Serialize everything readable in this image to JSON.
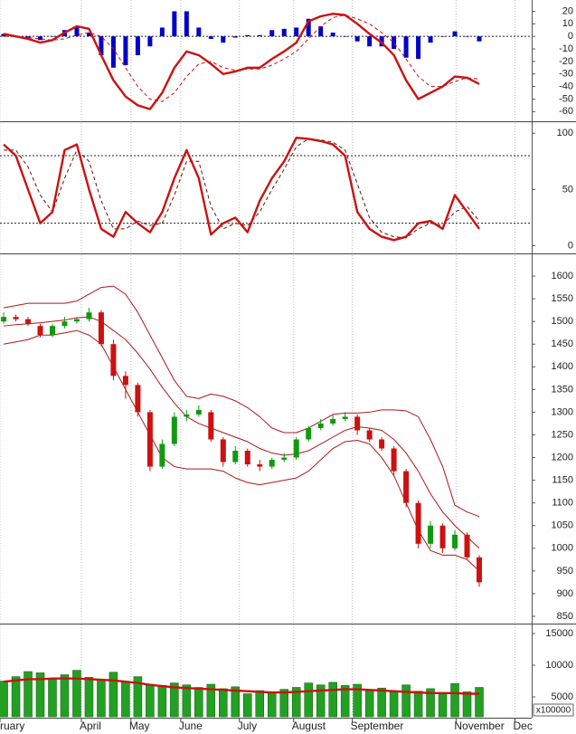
{
  "chart_data": {
    "type": "stock",
    "x": [
      0,
      1,
      2,
      3,
      4,
      5,
      6,
      7,
      8,
      9,
      10,
      11,
      12,
      13,
      14,
      15,
      16,
      17,
      18,
      19,
      20,
      21,
      22,
      23,
      24,
      25,
      26,
      27,
      28,
      29,
      30,
      31,
      32,
      33,
      34,
      35,
      36,
      37,
      38,
      39
    ],
    "xlim": [
      -0.3,
      43.3
    ],
    "xticks": [
      {
        "value": -0.3,
        "label": "ruary"
      },
      {
        "value": 6.37,
        "label": "April"
      },
      {
        "value": 10.44,
        "label": "May"
      },
      {
        "value": 14.52,
        "label": "June"
      },
      {
        "value": 19.33,
        "label": "July"
      },
      {
        "value": 23.78,
        "label": "August"
      },
      {
        "value": 28.59,
        "label": "September"
      },
      {
        "value": 37.1,
        "label": "November"
      },
      {
        "value": 41.93,
        "label": "Dec"
      }
    ],
    "grid": true,
    "panels": [
      {
        "type": "macd",
        "ylim": [
          -67,
          29
        ],
        "yticks": [
          20,
          10,
          0,
          -10,
          -20,
          -30,
          -40,
          -50,
          -60
        ],
        "ref_lines": [
          0
        ],
        "series": [
          {
            "kind": "bar",
            "color": "#0000c8",
            "values": [
              2,
              0,
              -1,
              -3,
              0,
              5,
              7,
              3,
              -15,
              -25,
              -23,
              -15,
              -8,
              7,
              20,
              20,
              7,
              -2,
              -5,
              -1,
              1,
              1,
              5,
              6,
              7,
              14,
              8,
              3,
              0,
              -4,
              -8,
              -8,
              -10,
              -17,
              -18,
              -5,
              0,
              4,
              0,
              -4
            ]
          },
          {
            "kind": "line",
            "color": "#cc1111",
            "dashed": true,
            "values": [
              0,
              0,
              -1,
              -2,
              -3,
              -2,
              1,
              3,
              0,
              -10,
              -25,
              -40,
              -50,
              -52,
              -45,
              -32,
              -22,
              -20,
              -25,
              -27,
              -26,
              -26,
              -23,
              -18,
              -12,
              -2,
              8,
              15,
              17,
              14,
              10,
              3,
              -5,
              -18,
              -32,
              -40,
              -40,
              -36,
              -33,
              -34
            ]
          },
          {
            "kind": "line",
            "color": "#cc1111",
            "dashed": false,
            "values": [
              2,
              0,
              -2,
              -5,
              -3,
              3,
              8,
              6,
              -15,
              -35,
              -48,
              -55,
              -58,
              -45,
              -25,
              -12,
              -15,
              -22,
              -30,
              -28,
              -25,
              -25,
              -18,
              -12,
              -5,
              12,
              16,
              18,
              17,
              10,
              2,
              -5,
              -15,
              -35,
              -50,
              -45,
              -40,
              -32,
              -33,
              -38
            ]
          }
        ]
      },
      {
        "type": "stochastic",
        "ylim": [
          -6,
          109
        ],
        "yticks": [
          100,
          50,
          0
        ],
        "ref_lines": [
          80,
          20
        ],
        "series": [
          {
            "kind": "line",
            "color": "#661111",
            "dashed": true,
            "values": [
              85,
              85,
              70,
              45,
              30,
              60,
              85,
              75,
              40,
              15,
              15,
              22,
              18,
              20,
              45,
              75,
              75,
              35,
              15,
              20,
              18,
              30,
              50,
              68,
              88,
              95,
              94,
              92,
              85,
              55,
              25,
              12,
              8,
              7,
              15,
              20,
              18,
              30,
              35,
              22
            ]
          },
          {
            "kind": "line",
            "color": "#cc1111",
            "dashed": false,
            "values": [
              90,
              80,
              50,
              20,
              30,
              85,
              90,
              50,
              15,
              8,
              30,
              20,
              12,
              30,
              60,
              85,
              60,
              10,
              20,
              25,
              12,
              40,
              60,
              75,
              96,
              95,
              93,
              90,
              80,
              30,
              15,
              8,
              5,
              8,
              20,
              22,
              15,
              45,
              30,
              15
            ]
          }
        ]
      },
      {
        "type": "price",
        "ylim": [
          836,
          1646
        ],
        "yticks": [
          1600,
          1550,
          1500,
          1450,
          1400,
          1350,
          1300,
          1250,
          1200,
          1150,
          1100,
          1050,
          1000,
          950,
          900,
          850
        ],
        "ref_lines": [],
        "series": [
          {
            "kind": "line",
            "color": "#b01818",
            "dashed": false,
            "values": [
              1530,
              1535,
              1540,
              1540,
              1540,
              1540,
              1545,
              1560,
              1575,
              1578,
              1560,
              1520,
              1470,
              1420,
              1370,
              1335,
              1330,
              1340,
              1335,
              1325,
              1310,
              1290,
              1265,
              1255,
              1255,
              1265,
              1280,
              1295,
              1298,
              1298,
              1300,
              1305,
              1305,
              1303,
              1290,
              1240,
              1180,
              1095,
              1080,
              1070
            ]
          },
          {
            "kind": "line",
            "color": "#b01818",
            "dashed": false,
            "values": [
              1490,
              1493,
              1495,
              1497,
              1500,
              1503,
              1508,
              1510,
              1500,
              1480,
              1460,
              1430,
              1395,
              1355,
              1320,
              1290,
              1275,
              1265,
              1255,
              1245,
              1235,
              1220,
              1210,
              1205,
              1208,
              1215,
              1230,
              1245,
              1260,
              1268,
              1265,
              1260,
              1240,
              1210,
              1170,
              1120,
              1080,
              1050,
              1025,
              1000
            ]
          },
          {
            "kind": "line",
            "color": "#b01818",
            "dashed": false,
            "values": [
              1450,
              1455,
              1460,
              1470,
              1470,
              1475,
              1480,
              1470,
              1450,
              1400,
              1350,
              1300,
              1250,
              1200,
              1180,
              1175,
              1175,
              1175,
              1170,
              1155,
              1145,
              1140,
              1145,
              1150,
              1155,
              1170,
              1195,
              1220,
              1235,
              1238,
              1230,
              1200,
              1160,
              1100,
              1040,
              995,
              985,
              985,
              975,
              950
            ]
          },
          {
            "kind": "candlestick",
            "up_color": "#119911",
            "down_color": "#cc1111",
            "open": [
              1500,
              1510,
              1505,
              1490,
              1470,
              1490,
              1500,
              1505,
              1520,
              1450,
              1380,
              1360,
              1300,
              1180,
              1230,
              1290,
              1295,
              1300,
              1240,
              1190,
              1215,
              1185,
              1180,
              1195,
              1200,
              1240,
              1265,
              1275,
              1285,
              1290,
              1260,
              1240,
              1220,
              1170,
              1100,
              1010,
              1050,
              1000,
              1030,
              980
            ],
            "high": [
              1520,
              1515,
              1510,
              1495,
              1495,
              1510,
              1510,
              1530,
              1525,
              1460,
              1390,
              1365,
              1305,
              1240,
              1300,
              1305,
              1315,
              1305,
              1245,
              1225,
              1220,
              1195,
              1200,
              1210,
              1245,
              1270,
              1285,
              1295,
              1300,
              1295,
              1265,
              1245,
              1225,
              1175,
              1105,
              1060,
              1055,
              1040,
              1035,
              985
            ],
            "low": [
              1495,
              1500,
              1490,
              1465,
              1465,
              1485,
              1495,
              1500,
              1445,
              1370,
              1330,
              1290,
              1170,
              1175,
              1225,
              1280,
              1290,
              1235,
              1180,
              1185,
              1180,
              1170,
              1175,
              1190,
              1195,
              1235,
              1260,
              1270,
              1280,
              1250,
              1235,
              1215,
              1160,
              1090,
              1000,
              1000,
              990,
              995,
              975,
              915
            ],
            "close": [
              1510,
              1505,
              1495,
              1470,
              1490,
              1500,
              1505,
              1520,
              1450,
              1380,
              1360,
              1300,
              1180,
              1230,
              1290,
              1295,
              1305,
              1240,
              1190,
              1215,
              1185,
              1180,
              1195,
              1200,
              1240,
              1265,
              1275,
              1285,
              1290,
              1260,
              1240,
              1220,
              1170,
              1100,
              1010,
              1050,
              1000,
              1030,
              980,
              925
            ]
          }
        ]
      },
      {
        "type": "volume",
        "ylim": [
          1857,
          16430
        ],
        "yticks": [
          15000,
          10000,
          5000
        ],
        "ref_lines": [],
        "unit_label": "x100000",
        "series": [
          {
            "kind": "bar",
            "color": "#22a022",
            "values": [
              7500,
              8200,
              9000,
              8800,
              7800,
              8500,
              9200,
              8100,
              7600,
              8900,
              7400,
              8200,
              7000,
              6800,
              7200,
              6900,
              6500,
              7000,
              6300,
              6600,
              5500,
              6000,
              5800,
              6200,
              6500,
              7200,
              6900,
              7300,
              6800,
              7000,
              6100,
              6400,
              5800,
              6900,
              5900,
              6300,
              5600,
              7100,
              5800,
              6500
            ]
          },
          {
            "kind": "line",
            "color": "#cc1111",
            "dashed": false,
            "values": [
              7400,
              7600,
              7800,
              7800,
              7900,
              7900,
              7900,
              7800,
              7700,
              7600,
              7400,
              7200,
              6900,
              6700,
              6500,
              6400,
              6300,
              6200,
              6100,
              6000,
              5900,
              5800,
              5700,
              5700,
              5800,
              5900,
              6000,
              6100,
              6200,
              6200,
              6100,
              6000,
              5900,
              5800,
              5700,
              5600,
              5600,
              5600,
              5500,
              5500
            ]
          }
        ]
      }
    ]
  }
}
